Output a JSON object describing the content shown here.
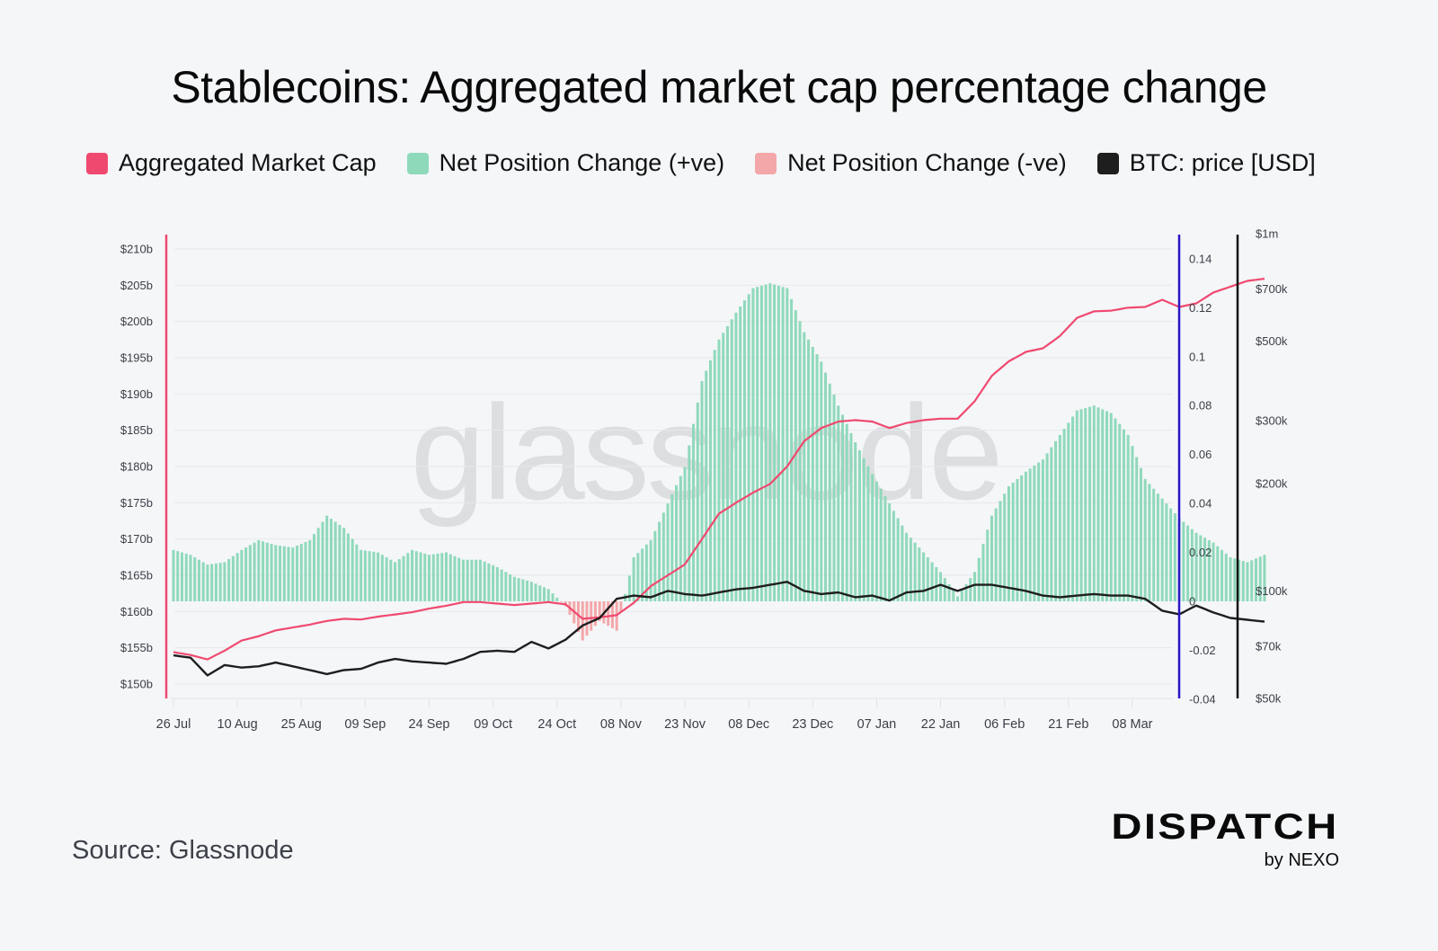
{
  "title": "Stablecoins: Aggregated market cap percentage change",
  "legend": [
    {
      "label": "Aggregated Market Cap",
      "color": "#f0496f"
    },
    {
      "label": "Net Position Change (+ve)",
      "color": "#8fd9bb"
    },
    {
      "label": "Net Position Change (-ve)",
      "color": "#f4a7a9"
    },
    {
      "label": "BTC: price [USD]",
      "color": "#1e1e1e"
    }
  ],
  "source": "Source: Glassnode",
  "brand": {
    "main": "DISPATCH",
    "sub": "by NEXO"
  },
  "watermark": "glassnode",
  "chart_data": {
    "type": "bar+line",
    "title": "Stablecoins: Aggregated market cap percentage change",
    "x_ticks": [
      "26 Jul",
      "10 Aug",
      "25 Aug",
      "09 Sep",
      "24 Sep",
      "09 Oct",
      "24 Oct",
      "08 Nov",
      "23 Nov",
      "08 Dec",
      "23 Dec",
      "07 Jan",
      "22 Jan",
      "06 Feb",
      "21 Feb",
      "08 Mar"
    ],
    "sample_interval_days": 4,
    "start_date": "26 Jul",
    "axes": {
      "left": {
        "label": "Aggregated Market Cap",
        "ticks": [
          "$150b",
          "$155b",
          "$160b",
          "$165b",
          "$170b",
          "$175b",
          "$180b",
          "$185b",
          "$190b",
          "$195b",
          "$200b",
          "$205b",
          "$210b"
        ],
        "range": [
          149,
          211
        ],
        "color": "#f0496f"
      },
      "middle": {
        "label": "Net Position Change",
        "ticks": [
          "-0.04",
          "-0.02",
          "0",
          "0.02",
          "0.04",
          "0.06",
          "0.08",
          "0.1",
          "0.12",
          "0.14"
        ],
        "range": [
          -0.04,
          0.15
        ],
        "color": "#2a16c8"
      },
      "right": {
        "label": "BTC: price [USD]",
        "scale": "log",
        "ticks": [
          "$50k",
          "$70k",
          "$100k",
          "$200k",
          "$300k",
          "$500k",
          "$700k",
          "$1m"
        ],
        "range": [
          50000,
          1000000
        ],
        "color": "#111111"
      }
    },
    "series": [
      {
        "name": "Aggregated Market Cap",
        "axis": "left",
        "unit": "billion USD",
        "values": [
          154.4,
          154.0,
          153.4,
          154.6,
          156.0,
          156.6,
          157.4,
          157.8,
          158.2,
          158.7,
          159.0,
          158.9,
          159.3,
          159.6,
          159.9,
          160.4,
          160.8,
          161.3,
          161.3,
          161.1,
          160.9,
          161.1,
          161.3,
          161.0,
          159.0,
          159.2,
          159.5,
          161.2,
          163.5,
          165.0,
          166.5,
          170.0,
          173.5,
          175.0,
          176.4,
          177.6,
          180.0,
          183.5,
          185.3,
          186.2,
          186.4,
          186.2,
          185.3,
          186.0,
          186.4,
          186.6,
          186.6,
          189.0,
          192.5,
          194.5,
          195.8,
          196.3,
          198.0,
          200.5,
          201.4,
          201.5,
          201.9,
          202.0,
          203.0,
          202.0,
          202.5,
          204.0,
          204.8,
          205.6,
          205.9
        ]
      },
      {
        "name": "Net Position Change",
        "axis": "middle",
        "unit": "fraction",
        "values": [
          0.021,
          0.019,
          0.015,
          0.016,
          0.021,
          0.025,
          0.023,
          0.022,
          0.025,
          0.035,
          0.03,
          0.021,
          0.02,
          0.016,
          0.021,
          0.019,
          0.02,
          0.017,
          0.017,
          0.014,
          0.01,
          0.008,
          0.005,
          -0.002,
          -0.016,
          -0.008,
          -0.012,
          0.018,
          0.025,
          0.04,
          0.055,
          0.09,
          0.107,
          0.118,
          0.128,
          0.13,
          0.128,
          0.11,
          0.098,
          0.08,
          0.065,
          0.052,
          0.04,
          0.028,
          0.02,
          0.012,
          0.002,
          0.012,
          0.035,
          0.047,
          0.053,
          0.058,
          0.068,
          0.078,
          0.08,
          0.077,
          0.068,
          0.05,
          0.042,
          0.034,
          0.028,
          0.024,
          0.018,
          0.016,
          0.019
        ]
      },
      {
        "name": "BTC: price [USD]",
        "axis": "right",
        "unit": "USD",
        "values": [
          66000,
          65000,
          58000,
          62000,
          61000,
          61500,
          63000,
          61500,
          60000,
          58500,
          60000,
          60500,
          63000,
          64500,
          63500,
          63000,
          62500,
          64500,
          67500,
          68000,
          67500,
          72000,
          69000,
          73000,
          80000,
          84000,
          95000,
          97000,
          96000,
          100000,
          98000,
          97000,
          99000,
          101000,
          102000,
          104000,
          106000,
          100000,
          98000,
          99000,
          96000,
          97000,
          94000,
          99000,
          100000,
          104000,
          100000,
          104000,
          104000,
          102000,
          100000,
          97000,
          96000,
          97000,
          98000,
          97000,
          97000,
          95000,
          88000,
          86000,
          91000,
          87000,
          84000,
          83000,
          82000
        ]
      }
    ]
  }
}
